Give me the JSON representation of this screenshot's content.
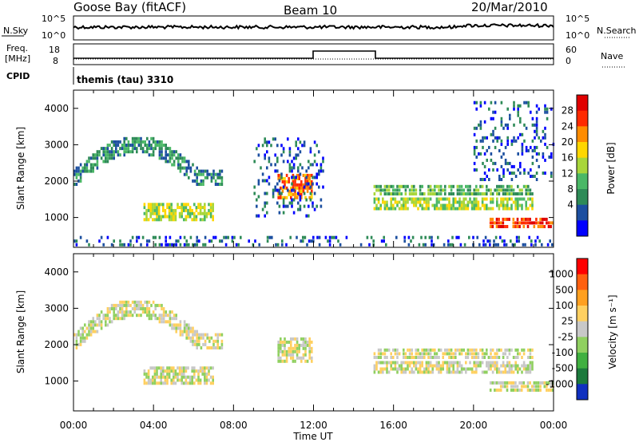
{
  "header": {
    "station": "Goose Bay (fitACF)",
    "beam": "Beam 10",
    "date": "20/Mar/2010"
  },
  "aux": {
    "nsky_label": "N.Sky",
    "nsky_ticks": [
      "10^5",
      "10^0"
    ],
    "nsearch_label": "N.Search",
    "nsearch_ticks": [
      "10^5",
      "10^0"
    ],
    "freq_label_1": "Freq.",
    "freq_label_2": "[MHz]",
    "freq_ticks": [
      "18",
      "8"
    ],
    "nave_ticks": [
      "60",
      "0"
    ],
    "nave_label": "Nave",
    "cpid_label": "CPID",
    "cpid_text": "themis (tau) 3310"
  },
  "chart_data": [
    {
      "type": "heatmap",
      "panel": "power",
      "ylabel": "Slant Range [km]",
      "y_ticks": [
        "4000",
        "3000",
        "2000",
        "1000"
      ],
      "ylim": [
        180,
        4500
      ],
      "xlim": [
        0,
        24
      ],
      "colorbar_label": "Power [dB]",
      "colorbar_ticks": [
        "28",
        "24",
        "20",
        "16",
        "12",
        "8",
        "4"
      ],
      "colors": [
        "#0000ff",
        "#1c4fa0",
        "#2e8b57",
        "#4ab866",
        "#a8d63a",
        "#ffd700",
        "#ff8c00",
        "#ff2a00",
        "#e00000"
      ],
      "regions": [
        {
          "label": "arc",
          "t": [
            0.0,
            7.5
          ],
          "r": [
            1600,
            3300
          ],
          "level": 2
        },
        {
          "label": "low-band",
          "t": [
            3.5,
            7.0
          ],
          "r": [
            900,
            1400
          ],
          "level": 4
        },
        {
          "label": "mid-block",
          "t": [
            10.2,
            12.0
          ],
          "r": [
            1500,
            2200
          ],
          "level": 6
        },
        {
          "label": "scatter-12",
          "t": [
            9.0,
            12.5
          ],
          "r": [
            1000,
            3200
          ],
          "level": 1
        },
        {
          "label": "band-1",
          "t": [
            15.0,
            23.0
          ],
          "r": [
            1200,
            1550
          ],
          "level": 4
        },
        {
          "label": "band-2",
          "t": [
            15.0,
            23.0
          ],
          "r": [
            1600,
            1900
          ],
          "level": 3
        },
        {
          "label": "lower-right",
          "t": [
            20.8,
            24.0
          ],
          "r": [
            700,
            1000
          ],
          "level": 7
        },
        {
          "label": "right-arc",
          "t": [
            20.0,
            24.0
          ],
          "r": [
            2000,
            4200
          ],
          "level": 1
        },
        {
          "label": "ground",
          "t": [
            0.0,
            24.0
          ],
          "r": [
            200,
            500
          ],
          "level": 1
        }
      ]
    },
    {
      "type": "heatmap",
      "panel": "velocity",
      "ylabel": "Slant Range [km]",
      "y_ticks": [
        "4000",
        "3000",
        "2000",
        "1000"
      ],
      "ylim": [
        180,
        4500
      ],
      "xlim": [
        0,
        24
      ],
      "colorbar_label": "Velocity [m s⁻¹]",
      "colorbar_ticks": [
        "1000",
        "500",
        "100",
        "25",
        "-25",
        "-100",
        "-500",
        "-1000"
      ],
      "colors": [
        "#1030c0",
        "#1c7a3c",
        "#40b040",
        "#90d060",
        "#c8c8c8",
        "#ffd060",
        "#ffa020",
        "#ff6010",
        "#ff0000"
      ],
      "regions": [
        {
          "label": "arc",
          "t": [
            0.0,
            7.5
          ],
          "r": [
            1600,
            3300
          ],
          "level": 4
        },
        {
          "label": "low-band",
          "t": [
            3.5,
            7.0
          ],
          "r": [
            900,
            1400
          ],
          "level": 4
        },
        {
          "label": "mid-block",
          "t": [
            10.2,
            12.0
          ],
          "r": [
            1500,
            2200
          ],
          "level": 4
        },
        {
          "label": "band-1",
          "t": [
            15.0,
            23.0
          ],
          "r": [
            1200,
            1550
          ],
          "level": 4
        },
        {
          "label": "band-2",
          "t": [
            15.0,
            23.0
          ],
          "r": [
            1600,
            1900
          ],
          "level": 4
        },
        {
          "label": "lower-right",
          "t": [
            20.8,
            24.0
          ],
          "r": [
            700,
            1000
          ],
          "level": 4
        }
      ]
    }
  ],
  "x_ticks": [
    "00:00",
    "04:00",
    "08:00",
    "12:00",
    "16:00",
    "20:00",
    "00:00"
  ],
  "x_label": "Time UT"
}
